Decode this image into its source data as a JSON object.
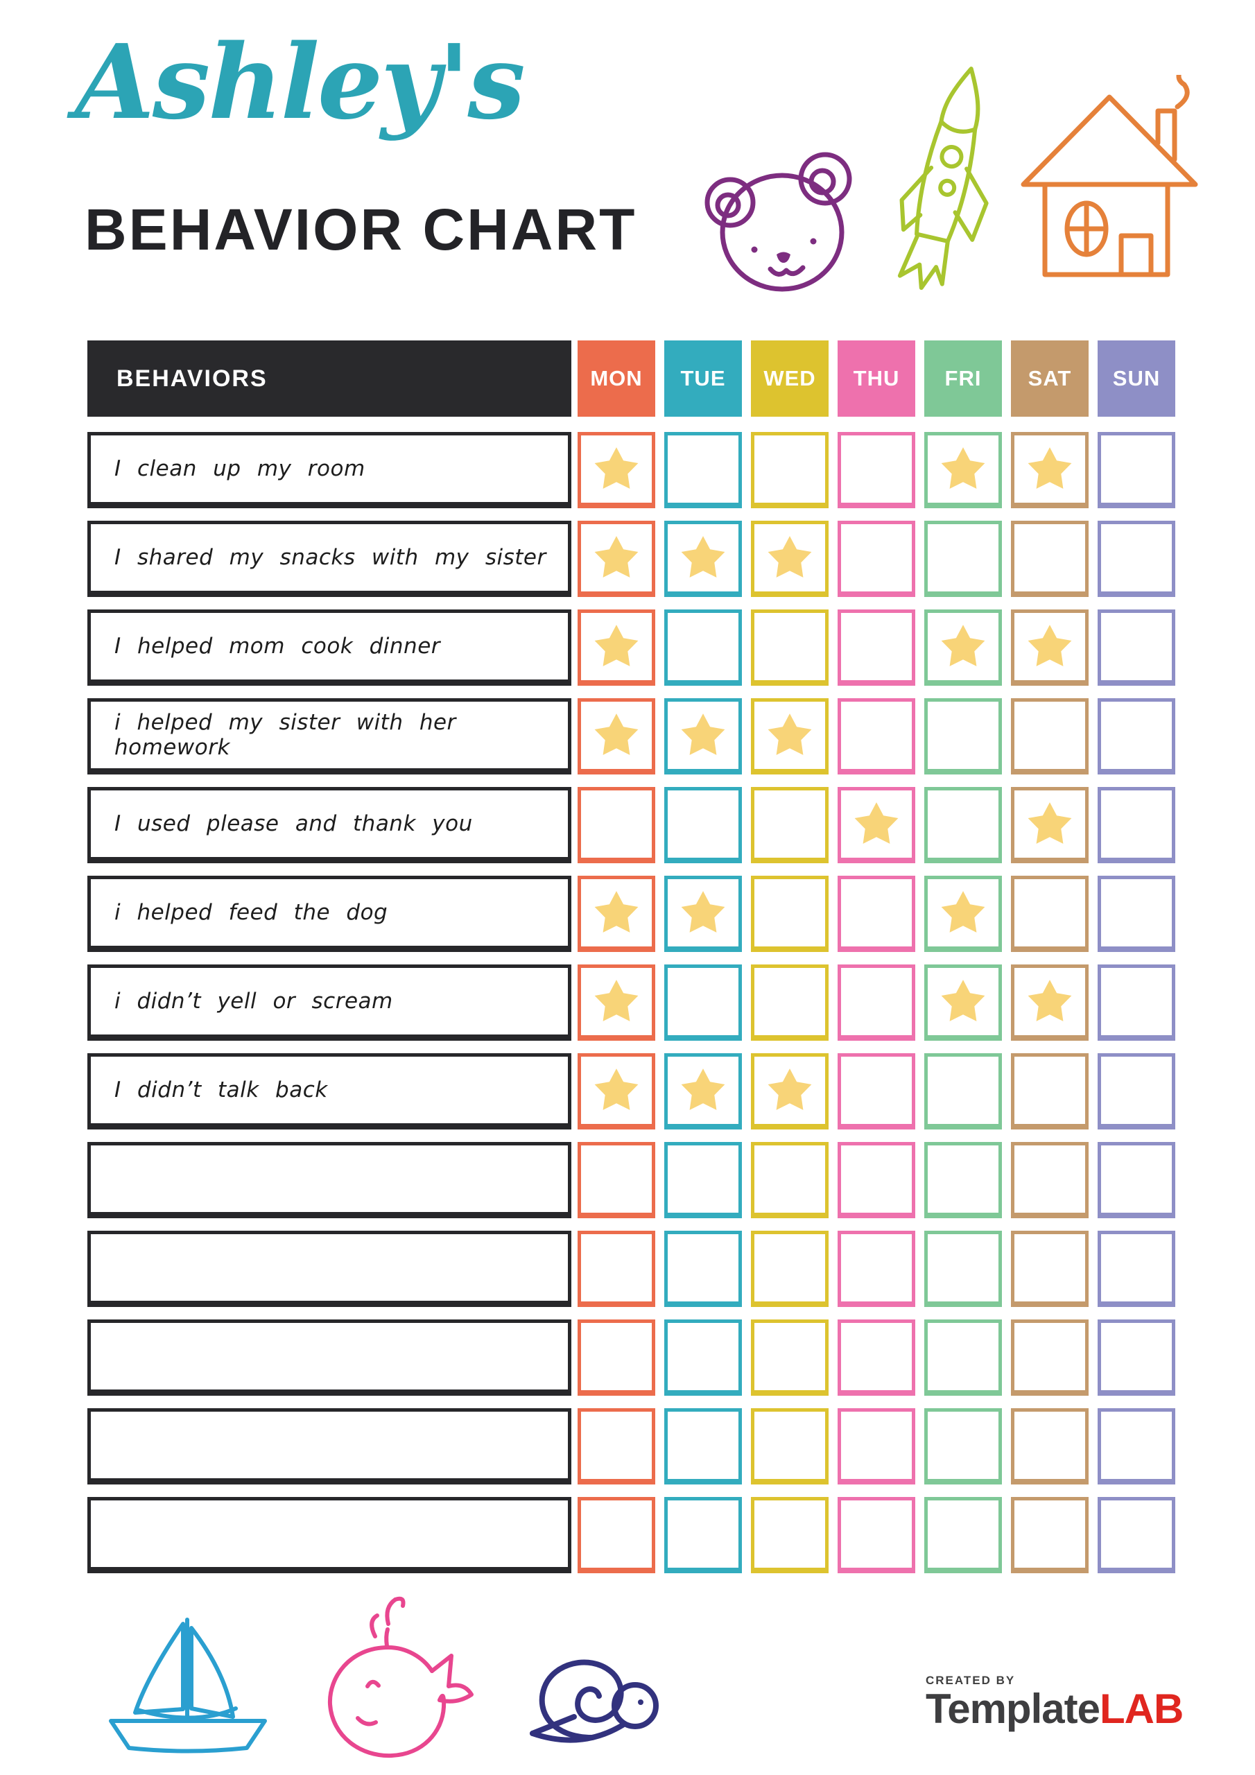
{
  "header": {
    "script_title": "Ashley's",
    "main_title": "BEHAVIOR CHART",
    "script_title_color": "#2ca4b5",
    "doodles": [
      "bear-icon",
      "rocket-icon",
      "house-icon"
    ]
  },
  "table": {
    "behaviors_label": "BEHAVIORS",
    "behaviors_header_bg": "#29292c",
    "star_color": "#f8d478",
    "days": [
      {
        "label": "MON",
        "color": "#ec6c4c"
      },
      {
        "label": "TUE",
        "color": "#33acbe"
      },
      {
        "label": "WED",
        "color": "#ddc32f"
      },
      {
        "label": "THU",
        "color": "#ee71ad"
      },
      {
        "label": "FRI",
        "color": "#7fc897"
      },
      {
        "label": "SAT",
        "color": "#c49a6c"
      },
      {
        "label": "SUN",
        "color": "#8e8fc6"
      }
    ],
    "rows": [
      {
        "behavior": "I clean up my room",
        "stars": [
          1,
          0,
          0,
          0,
          1,
          1,
          0
        ]
      },
      {
        "behavior": "I shared my snacks with my sister",
        "stars": [
          1,
          1,
          1,
          0,
          0,
          0,
          0
        ]
      },
      {
        "behavior": "I helped mom cook dinner",
        "stars": [
          1,
          0,
          0,
          0,
          1,
          1,
          0
        ]
      },
      {
        "behavior": "i helped my sister with her homework",
        "stars": [
          1,
          1,
          1,
          0,
          0,
          0,
          0
        ]
      },
      {
        "behavior": "I used please and thank you",
        "stars": [
          0,
          0,
          0,
          1,
          0,
          1,
          0
        ]
      },
      {
        "behavior": "i helped feed the dog",
        "stars": [
          1,
          1,
          0,
          0,
          1,
          0,
          0
        ]
      },
      {
        "behavior": "i didn’t yell or scream",
        "stars": [
          1,
          0,
          0,
          0,
          1,
          1,
          0
        ]
      },
      {
        "behavior": "I didn’t talk back",
        "stars": [
          1,
          1,
          1,
          0,
          0,
          0,
          0
        ]
      },
      {
        "behavior": "",
        "stars": [
          0,
          0,
          0,
          0,
          0,
          0,
          0
        ]
      },
      {
        "behavior": "",
        "stars": [
          0,
          0,
          0,
          0,
          0,
          0,
          0
        ]
      },
      {
        "behavior": "",
        "stars": [
          0,
          0,
          0,
          0,
          0,
          0,
          0
        ]
      },
      {
        "behavior": "",
        "stars": [
          0,
          0,
          0,
          0,
          0,
          0,
          0
        ]
      },
      {
        "behavior": "",
        "stars": [
          0,
          0,
          0,
          0,
          0,
          0,
          0
        ]
      }
    ]
  },
  "footer": {
    "doodles": [
      "sailboat-icon",
      "whale-icon",
      "snail-icon"
    ],
    "created_by": "CREATED BY",
    "brand_first": "Template",
    "brand_last": "LAB",
    "brand_first_color": "#3e3e40",
    "brand_last_color": "#e0261f"
  }
}
